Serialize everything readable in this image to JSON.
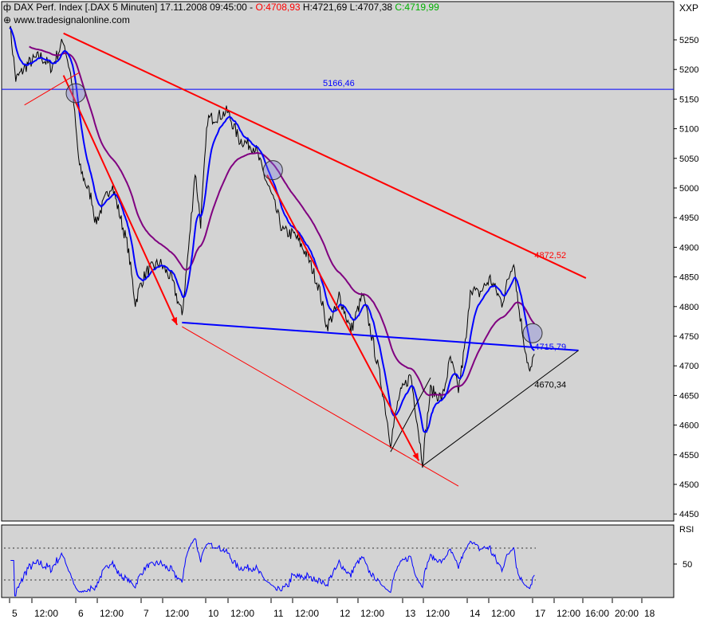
{
  "header": {
    "title": "DAX Perf. Index [.DAX  5 Minuten] 17.11.2008 09:45:00 -",
    "open": "O:4708,93",
    "high": "H:4721,69",
    "low": "L:4707,38",
    "close": "C:4719,99",
    "watermark": "www.tradesignalonline.com",
    "symbol_label": "XXP",
    "colors": {
      "open": "#ff0000",
      "close": "#00c000"
    }
  },
  "chart_data": [
    {
      "type": "line",
      "panel": "price",
      "ylim": [
        4450,
        5250
      ],
      "yticks": [
        4450,
        4500,
        4550,
        4600,
        4650,
        4700,
        4750,
        4800,
        4850,
        4900,
        4950,
        5000,
        5050,
        5100,
        5150,
        5200,
        5250
      ],
      "trading_days": [
        "5",
        "6",
        "7",
        "10",
        "11",
        "12",
        "13",
        "14",
        "17"
      ],
      "xticks": [
        "5",
        "12:00",
        "6",
        "12:00",
        "7",
        "12:00",
        "10",
        "12:00",
        "11",
        "12:00",
        "12",
        "12:00",
        "13",
        "12:00",
        "14",
        "12:00",
        "17",
        "12:00",
        "16:00",
        "20:00",
        "18"
      ],
      "grid": false,
      "price_series": [
        [
          "5 09:00",
          5280
        ],
        [
          "5 09:50",
          5183
        ],
        [
          "5 11:30",
          5210
        ],
        [
          "5 13:05",
          5223
        ],
        [
          "5 14:40",
          5203
        ],
        [
          "5 16:15",
          5250
        ],
        [
          "5 17:20",
          5183
        ],
        [
          "6 09:00",
          5102
        ],
        [
          "6 09:30",
          5035
        ],
        [
          "6 11:10",
          4981
        ],
        [
          "6 11:40",
          4941
        ],
        [
          "6 13:50",
          5008
        ],
        [
          "6 16:00",
          4901
        ],
        [
          "6 17:00",
          4806
        ],
        [
          "7 09:00",
          4840
        ],
        [
          "7 09:50",
          4860
        ],
        [
          "7 11:30",
          4874
        ],
        [
          "7 13:05",
          4847
        ],
        [
          "7 14:30",
          4786
        ],
        [
          "7 15:30",
          4914
        ],
        [
          "7 16:15",
          5028
        ],
        [
          "7 17:00",
          4941
        ],
        [
          "10 09:15",
          5116
        ],
        [
          "10 10:50",
          5122
        ],
        [
          "10 11:55",
          5129
        ],
        [
          "10 13:30",
          5082
        ],
        [
          "10 15:40",
          5068
        ],
        [
          "10 16:40",
          5028
        ],
        [
          "11 09:00",
          4990
        ],
        [
          "11 10:35",
          4927
        ],
        [
          "11 12:10",
          4921
        ],
        [
          "11 13:50",
          4887
        ],
        [
          "11 15:25",
          4833
        ],
        [
          "11 16:30",
          4766
        ],
        [
          "12 09:00",
          4800
        ],
        [
          "12 09:15",
          4820
        ],
        [
          "12 10:50",
          4759
        ],
        [
          "12 12:25",
          4820
        ],
        [
          "12 13:30",
          4759
        ],
        [
          "12 15:05",
          4659
        ],
        [
          "12 16:10",
          4571
        ],
        [
          "12 17:15",
          4645
        ],
        [
          "13 09:00",
          4660
        ],
        [
          "13 10:05",
          4685
        ],
        [
          "13 10:50",
          4618
        ],
        [
          "13 11:40",
          4538
        ],
        [
          "13 12:45",
          4659
        ],
        [
          "13 14:20",
          4645
        ],
        [
          "13 15:25",
          4712
        ],
        [
          "13 16:30",
          4659
        ],
        [
          "14 09:00",
          4760
        ],
        [
          "14 09:25",
          4833
        ],
        [
          "14 10:30",
          4820
        ],
        [
          "14 12:05",
          4847
        ],
        [
          "14 13:40",
          4806
        ],
        [
          "14 15:15",
          4880
        ],
        [
          "14 15:50",
          4806
        ],
        [
          "14 16:40",
          4739
        ],
        [
          "14 17:25",
          4685
        ],
        [
          "17 09:15",
          4720
        ]
      ],
      "series": [
        {
          "kind": "moving-average-fast",
          "color": "#0000ff"
        },
        {
          "kind": "moving-average-slow",
          "color": "#800080"
        }
      ],
      "hlines": [
        {
          "price": 5166.46,
          "label": "5166,46",
          "color": "#0000ff"
        }
      ],
      "lines": [
        {
          "from": [
            "5 16:15",
            5261
          ],
          "to": [
            "17 16:10",
            4848
          ],
          "color": "#ff0000",
          "width": 2
        },
        {
          "from": [
            "7 14:30",
            4773
          ],
          "to": [
            "17 15:10",
            4726
          ],
          "color": "#0000ff",
          "width": 2
        },
        {
          "from": [
            "7 14:30",
            4766
          ],
          "to": [
            "13 16:30",
            4497
          ],
          "color": "#ff0000",
          "width": 1
        },
        {
          "from": [
            "13 11:40",
            4531
          ],
          "to": [
            "17 15:10",
            4726
          ],
          "color": "#000000",
          "width": 1
        },
        {
          "from": [
            "12 16:10",
            4555
          ],
          "to": [
            "13 12:45",
            4680
          ],
          "color": "#000000",
          "width": 1
        },
        {
          "from": [
            "5 11:00",
            5140
          ],
          "to": [
            "6 09:30",
            5195
          ],
          "color": "#ff0000",
          "width": 1
        }
      ],
      "arrows": [
        {
          "from": [
            "5 16:15",
            5190
          ],
          "to": [
            "7 13:50",
            4769
          ],
          "color": "#ff0000"
        },
        {
          "from": [
            "10 17:15",
            5022
          ],
          "to": [
            "13 11:10",
            4540
          ],
          "color": "#ff0000"
        }
      ],
      "circles": [
        [
          "6 09:00",
          5160
        ],
        [
          "11 09:15",
          5030
        ],
        [
          "17 09:00",
          4755
        ]
      ],
      "annotations": [
        {
          "text": "4872,52",
          "at": [
            "17 09:15",
            4882
          ],
          "color": "#ff0000"
        },
        {
          "text": "4715,79",
          "at": [
            "17 09:15",
            4727
          ],
          "color": "#0000ff"
        },
        {
          "text": "4670,34",
          "at": [
            "17 09:15",
            4663
          ],
          "color": "#000000"
        }
      ]
    },
    {
      "type": "line",
      "panel": "RSI",
      "label": "RSI",
      "yticks": [
        50
      ],
      "levels": [
        70,
        30
      ],
      "color": "#0000ff"
    }
  ]
}
